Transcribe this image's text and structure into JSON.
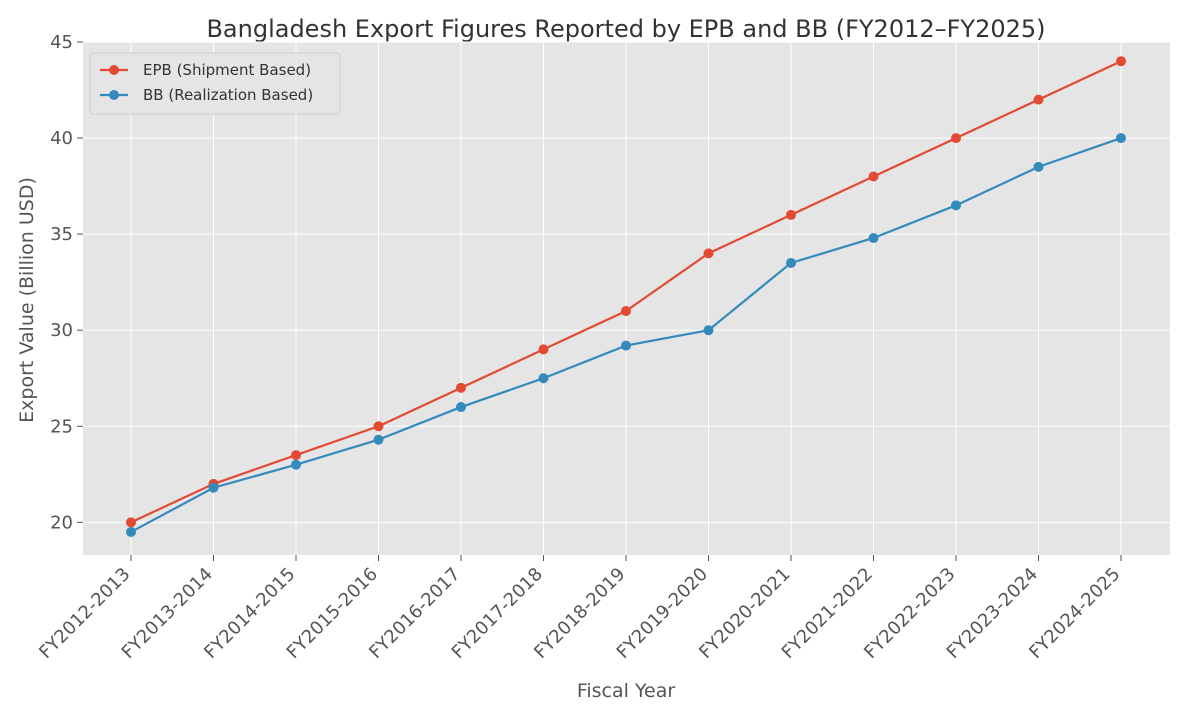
{
  "chart_data": {
    "type": "line",
    "title": "Bangladesh Export Figures Reported by EPB and BB (FY2012–FY2025)",
    "xlabel": "Fiscal Year",
    "ylabel": "Export Value (Billion USD)",
    "ylim": [
      18.3,
      45.0
    ],
    "yticks": [
      20,
      25,
      30,
      35,
      40,
      45
    ],
    "grid": true,
    "legend_position": "top-left",
    "categories": [
      "FY2012-2013",
      "FY2013-2014",
      "FY2014-2015",
      "FY2015-2016",
      "FY2016-2017",
      "FY2017-2018",
      "FY2018-2019",
      "FY2019-2020",
      "FY2020-2021",
      "FY2021-2022",
      "FY2022-2023",
      "FY2023-2024",
      "FY2024-2025"
    ],
    "series": [
      {
        "name": "EPB (Shipment Based)",
        "color": "#E24A33",
        "values": [
          20.0,
          22.0,
          23.5,
          25.0,
          27.0,
          29.0,
          31.0,
          34.0,
          36.0,
          38.0,
          40.0,
          42.0,
          44.0
        ]
      },
      {
        "name": "BB (Realization Based)",
        "color": "#348ABD",
        "values": [
          19.5,
          21.8,
          23.0,
          24.3,
          26.0,
          27.5,
          29.2,
          30.0,
          33.5,
          34.8,
          36.5,
          38.5,
          40.0
        ]
      }
    ]
  }
}
